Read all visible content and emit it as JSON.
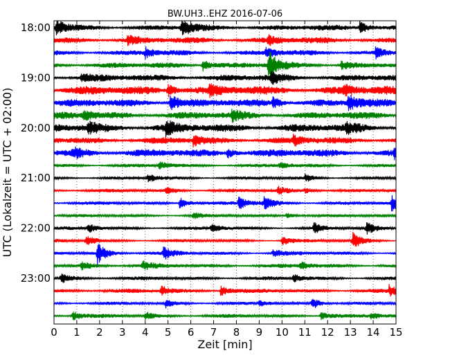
{
  "chart_data": {
    "type": "line",
    "title": "BW.UH3..EHZ 2016-07-06",
    "xlabel": "Zeit  [min]",
    "ylabel": "UTC (Lokalzeit = UTC + 02:00)",
    "xlim": [
      0,
      15
    ],
    "x_ticks": [
      "0",
      "1",
      "2",
      "3",
      "4",
      "5",
      "6",
      "7",
      "8",
      "9",
      "10",
      "11",
      "12",
      "13",
      "14",
      "15"
    ],
    "y_ticks": [
      {
        "label": "18:00",
        "trace": 0
      },
      {
        "label": "19:00",
        "trace": 4
      },
      {
        "label": "20:00",
        "trace": 8
      },
      {
        "label": "21:00",
        "trace": 12
      },
      {
        "label": "22:00",
        "trace": 16
      },
      {
        "label": "23:00",
        "trace": 20
      }
    ],
    "grid": "vertical dotted lines at each minute",
    "trace_colors": [
      "#000000",
      "#ff0000",
      "#0000ff",
      "#008000"
    ],
    "trace_interval_minutes": 15,
    "traces": [
      {
        "start": "18:00",
        "amplitude": 0.55,
        "events": [
          {
            "t": 0.1,
            "a": 1.6
          },
          {
            "t": 5.6,
            "a": 2.0
          },
          {
            "t": 13.4,
            "a": 1.4
          }
        ]
      },
      {
        "start": "18:15",
        "amplitude": 0.6,
        "events": [
          {
            "t": 3.2,
            "a": 1.0
          },
          {
            "t": 9.4,
            "a": 0.9
          }
        ]
      },
      {
        "start": "18:30",
        "amplitude": 0.5,
        "events": [
          {
            "t": 4.0,
            "a": 1.0
          },
          {
            "t": 9.3,
            "a": 1.2
          },
          {
            "t": 14.1,
            "a": 1.0
          }
        ]
      },
      {
        "start": "18:45",
        "amplitude": 0.55,
        "events": [
          {
            "t": 6.5,
            "a": 1.3
          },
          {
            "t": 9.4,
            "a": 3.0
          },
          {
            "t": 12.6,
            "a": 0.9
          }
        ]
      },
      {
        "start": "19:00",
        "amplitude": 0.65,
        "events": [
          {
            "t": 1.2,
            "a": 0.9
          },
          {
            "t": 9.5,
            "a": 1.1
          }
        ]
      },
      {
        "start": "19:15",
        "amplitude": 0.85,
        "events": [
          {
            "t": 5.0,
            "a": 1.3
          },
          {
            "t": 6.8,
            "a": 1.1
          },
          {
            "t": 12.7,
            "a": 1.0
          }
        ]
      },
      {
        "start": "19:30",
        "amplitude": 0.75,
        "events": [
          {
            "t": 5.1,
            "a": 1.8
          },
          {
            "t": 9.6,
            "a": 1.1
          },
          {
            "t": 12.9,
            "a": 1.6
          }
        ]
      },
      {
        "start": "19:45",
        "amplitude": 0.7,
        "events": [
          {
            "t": 1.3,
            "a": 1.0
          },
          {
            "t": 7.8,
            "a": 0.9
          }
        ]
      },
      {
        "start": "20:00",
        "amplitude": 0.8,
        "events": [
          {
            "t": 1.5,
            "a": 1.1
          },
          {
            "t": 4.9,
            "a": 1.4
          },
          {
            "t": 12.8,
            "a": 1.0
          }
        ]
      },
      {
        "start": "20:15",
        "amplitude": 0.65,
        "events": [
          {
            "t": 6.1,
            "a": 1.0
          },
          {
            "t": 10.5,
            "a": 0.9
          }
        ]
      },
      {
        "start": "20:30",
        "amplitude": 0.75,
        "events": [
          {
            "t": 0.8,
            "a": 1.0
          },
          {
            "t": 7.6,
            "a": 1.0
          },
          {
            "t": 14.9,
            "a": 1.0
          }
        ]
      },
      {
        "start": "20:45",
        "amplitude": 0.35,
        "events": [
          {
            "t": 4.6,
            "a": 0.8
          },
          {
            "t": 9.9,
            "a": 0.6
          }
        ]
      },
      {
        "start": "21:00",
        "amplitude": 0.3,
        "events": [
          {
            "t": 4.1,
            "a": 0.9
          },
          {
            "t": 11.0,
            "a": 0.8
          }
        ]
      },
      {
        "start": "21:15",
        "amplitude": 0.35,
        "events": [
          {
            "t": 4.9,
            "a": 0.7
          },
          {
            "t": 9.8,
            "a": 0.8
          },
          {
            "t": 11.0,
            "a": 0.6
          }
        ]
      },
      {
        "start": "21:30",
        "amplitude": 0.35,
        "events": [
          {
            "t": 5.5,
            "a": 1.2
          },
          {
            "t": 8.1,
            "a": 1.3
          },
          {
            "t": 9.2,
            "a": 1.4
          },
          {
            "t": 14.8,
            "a": 1.6
          }
        ]
      },
      {
        "start": "21:45",
        "amplitude": 0.3,
        "events": [
          {
            "t": 6.1,
            "a": 0.6
          },
          {
            "t": 10.2,
            "a": 0.6
          }
        ]
      },
      {
        "start": "22:00",
        "amplitude": 0.3,
        "events": [
          {
            "t": 1.5,
            "a": 1.0
          },
          {
            "t": 6.9,
            "a": 0.9
          },
          {
            "t": 11.4,
            "a": 1.1
          },
          {
            "t": 13.7,
            "a": 1.3
          }
        ]
      },
      {
        "start": "22:15",
        "amplitude": 0.3,
        "events": [
          {
            "t": 1.4,
            "a": 1.2
          },
          {
            "t": 10.0,
            "a": 1.0
          },
          {
            "t": 13.1,
            "a": 1.7
          }
        ]
      },
      {
        "start": "22:30",
        "amplitude": 0.35,
        "events": [
          {
            "t": 1.9,
            "a": 2.2
          },
          {
            "t": 4.8,
            "a": 1.2
          },
          {
            "t": 9.6,
            "a": 0.8
          }
        ]
      },
      {
        "start": "22:45",
        "amplitude": 0.4,
        "events": [
          {
            "t": 1.2,
            "a": 0.8
          },
          {
            "t": 3.9,
            "a": 0.8
          },
          {
            "t": 10.8,
            "a": 0.7
          }
        ]
      },
      {
        "start": "23:00",
        "amplitude": 0.35,
        "events": [
          {
            "t": 0.3,
            "a": 1.0
          },
          {
            "t": 10.5,
            "a": 0.8
          }
        ]
      },
      {
        "start": "23:15",
        "amplitude": 0.4,
        "events": [
          {
            "t": 4.7,
            "a": 1.0
          },
          {
            "t": 7.3,
            "a": 1.1
          },
          {
            "t": 14.7,
            "a": 1.1
          }
        ]
      },
      {
        "start": "23:30",
        "amplitude": 0.3,
        "events": [
          {
            "t": 4.9,
            "a": 0.8
          },
          {
            "t": 9.0,
            "a": 0.6
          },
          {
            "t": 11.3,
            "a": 1.3
          }
        ]
      },
      {
        "start": "23:45",
        "amplitude": 0.35,
        "events": [
          {
            "t": 0.8,
            "a": 1.0
          },
          {
            "t": 4.0,
            "a": 0.8
          },
          {
            "t": 11.7,
            "a": 1.0
          },
          {
            "t": 13.9,
            "a": 0.6
          }
        ]
      }
    ]
  }
}
